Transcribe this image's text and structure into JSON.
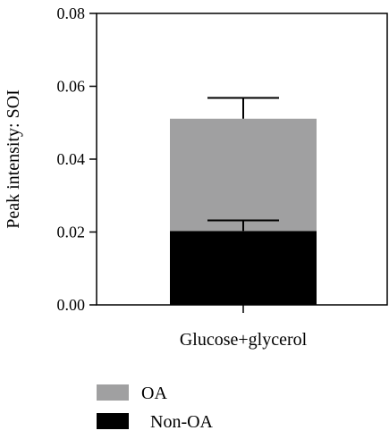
{
  "chart_data": {
    "type": "bar",
    "stacked": true,
    "categories": [
      "Glucose+glycerol"
    ],
    "ylabel": "Peak intensity: SOI",
    "xlabel": "",
    "ylim": [
      0,
      0.08
    ],
    "yticks": [
      "0.00",
      "0.02",
      "0.04",
      "0.06",
      "0.08"
    ],
    "series": [
      {
        "name": "Non-OA",
        "values": [
          0.0203
        ],
        "error_upper": [
          0.0232
        ],
        "color": "#000000"
      },
      {
        "name": "OA",
        "values": [
          0.0308
        ],
        "error_upper": [
          0.0568
        ],
        "color": "#a0a0a1"
      }
    ],
    "legend_position": "bottom-left",
    "legend_order": [
      "OA",
      "Non-OA"
    ],
    "grid": false
  }
}
